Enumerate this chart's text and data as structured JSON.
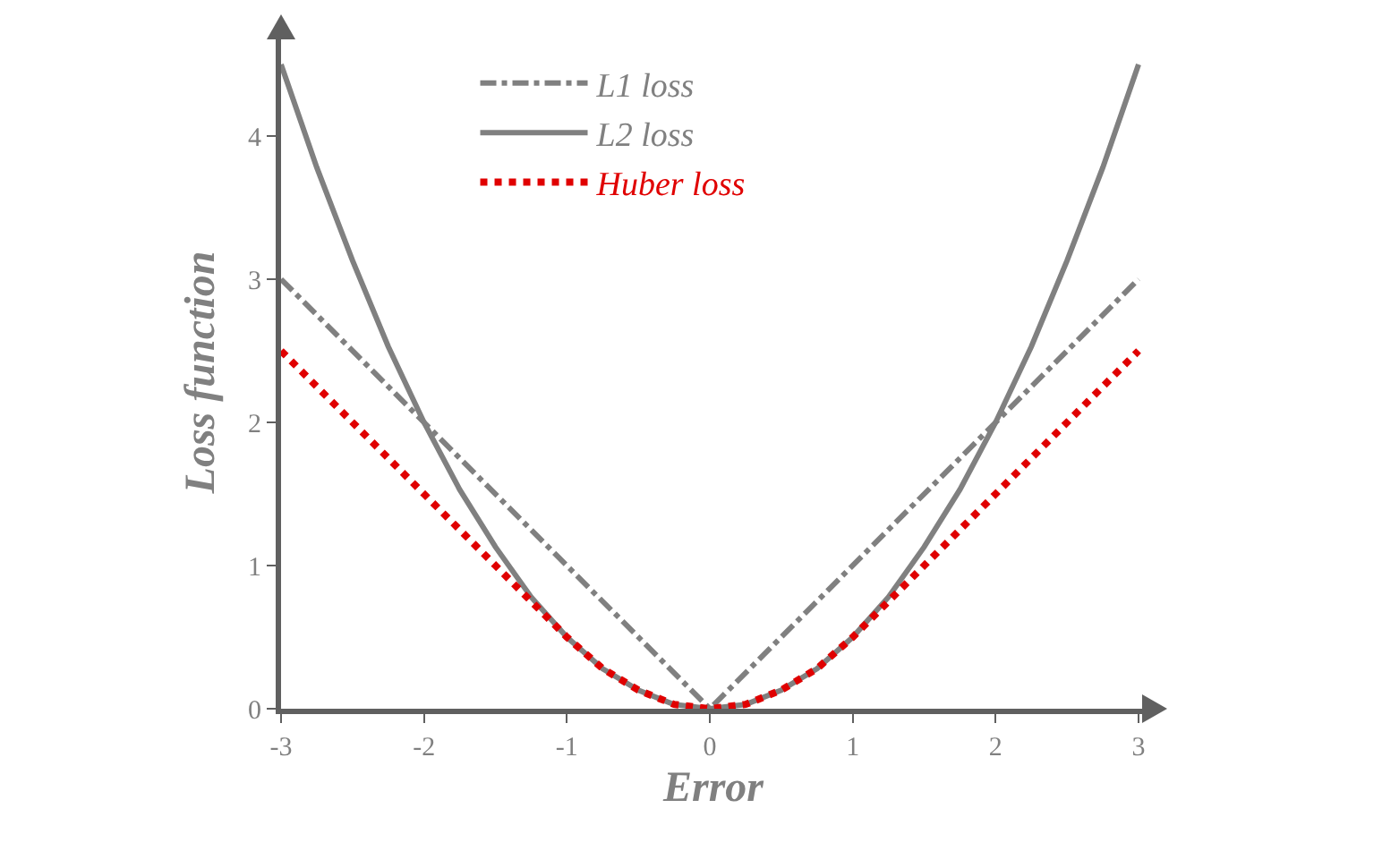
{
  "chart_data": {
    "type": "line",
    "xlabel": "Error",
    "ylabel": "Loss function",
    "xlim": [
      -3,
      3.05
    ],
    "ylim": [
      0,
      4.7
    ],
    "xticks": [
      -3,
      -2,
      -1,
      0,
      1,
      2,
      3
    ],
    "yticks": [
      0,
      1,
      2,
      3,
      4
    ],
    "grid": false,
    "legend": "top",
    "series": [
      {
        "name": "L1 loss",
        "color": "#808080",
        "line_style": "dashdot",
        "x": [
          -3,
          0,
          3
        ],
        "values": [
          3,
          0,
          3
        ]
      },
      {
        "name": "L2 loss",
        "color": "#808080",
        "line_style": "solid",
        "x": [
          -3,
          -2.75,
          -2.5,
          -2.25,
          -2,
          -1.75,
          -1.5,
          -1.25,
          -1,
          -0.75,
          -0.5,
          -0.25,
          0,
          0.25,
          0.5,
          0.75,
          1,
          1.25,
          1.5,
          1.75,
          2,
          2.25,
          2.5,
          2.75,
          3
        ],
        "values": [
          4.5,
          3.78,
          3.13,
          2.53,
          2,
          1.53,
          1.13,
          0.78,
          0.5,
          0.28,
          0.13,
          0.03,
          0,
          0.03,
          0.13,
          0.28,
          0.5,
          0.78,
          1.13,
          1.53,
          2,
          2.53,
          3.13,
          3.78,
          4.5
        ]
      },
      {
        "name": "Huber loss",
        "color": "#e00000",
        "line_style": "dotted",
        "x": [
          -3,
          -2.75,
          -2.5,
          -2.25,
          -2,
          -1.75,
          -1.5,
          -1.25,
          -1,
          -0.75,
          -0.5,
          -0.25,
          0,
          0.25,
          0.5,
          0.75,
          1,
          1.25,
          1.5,
          1.75,
          2,
          2.25,
          2.5,
          2.75,
          3
        ],
        "values": [
          2.5,
          2.25,
          2,
          1.75,
          1.5,
          1.25,
          1,
          0.75,
          0.5,
          0.28,
          0.13,
          0.03,
          0,
          0.03,
          0.13,
          0.28,
          0.5,
          0.75,
          1,
          1.25,
          1.5,
          1.75,
          2,
          2.25,
          2.5
        ]
      }
    ]
  }
}
